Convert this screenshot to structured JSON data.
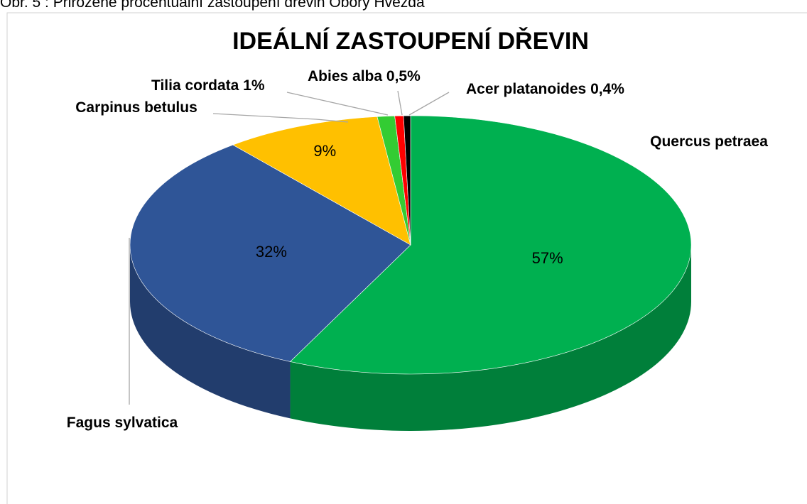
{
  "caption": "Obr. 5 : Přirozené procentuální zastoupení dřevin Obory Hvězda",
  "chart_data": {
    "type": "pie3d",
    "title": "IDEÁLNÍ ZASTOUPENÍ DŘEVIN",
    "categories": [
      "Quercus petraea",
      "Fagus sylvatica",
      "Carpinus betulus",
      "Tilia cordata",
      "Abies alba",
      "Acer platanoides"
    ],
    "values": [
      57,
      32,
      9,
      1,
      0.5,
      0.4
    ],
    "value_labels": [
      "57%",
      "32%",
      "9%",
      "1%",
      "0,5%",
      "0,4%"
    ],
    "colors": [
      "#00b050",
      "#2f5597",
      "#ffc000",
      "#33cc33",
      "#ff0000",
      "#000000"
    ]
  }
}
